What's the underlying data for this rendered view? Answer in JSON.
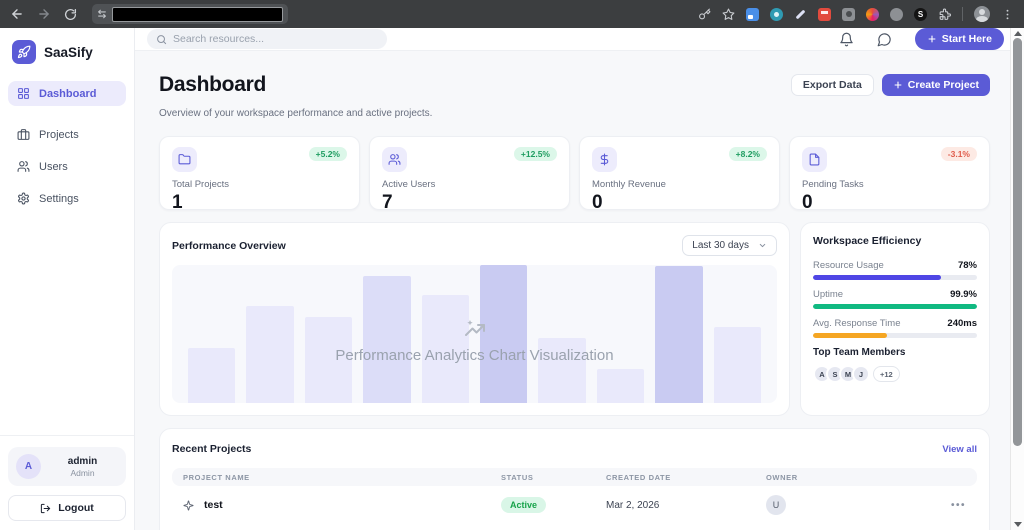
{
  "colors": {
    "accent": "#5b5bd6",
    "accent_soft": "#ecebfc",
    "positive_text": "#1f9d61",
    "positive_bg": "#dcf7e9",
    "negative_text": "#e05b4a",
    "negative_bg": "#fdeae4",
    "progress_indigo": "#4f46e5",
    "progress_green": "#10b981",
    "progress_orange": "#f5a623"
  },
  "sidebar": {
    "brand": "SaaSify",
    "items": [
      {
        "label": "Dashboard",
        "active": true
      },
      {
        "label": "Projects",
        "active": false
      },
      {
        "label": "Users",
        "active": false
      },
      {
        "label": "Settings",
        "active": false
      }
    ],
    "user": {
      "name": "admin",
      "role": "Admin",
      "initial": "A"
    },
    "logout_label": "Logout"
  },
  "topbar": {
    "search_placeholder": "Search resources...",
    "start_button": "Start Here"
  },
  "page": {
    "title": "Dashboard",
    "subtitle": "Overview of your workspace performance and active projects.",
    "export_button": "Export Data",
    "create_button": "Create Project"
  },
  "stats": [
    {
      "label": "Total Projects",
      "value": "1",
      "change": "+5.2%",
      "trend": "up",
      "icon": "folder-icon"
    },
    {
      "label": "Active Users",
      "value": "7",
      "change": "+12.5%",
      "trend": "up",
      "icon": "users-icon"
    },
    {
      "label": "Monthly Revenue",
      "value": "0",
      "change": "+8.2%",
      "trend": "up",
      "icon": "dollar-icon"
    },
    {
      "label": "Pending Tasks",
      "value": "0",
      "change": "-3.1%",
      "trend": "down",
      "icon": "file-icon"
    }
  ],
  "performance": {
    "title": "Performance Overview",
    "range_selected": "Last 30 days",
    "placeholder_text": "Performance Analytics Chart Visualization",
    "chart_data": {
      "type": "bar",
      "title": "Performance Overview",
      "values": [
        40,
        70,
        62,
        92,
        78,
        100,
        47,
        25,
        99,
        55
      ],
      "bar_tones": [
        "light",
        "light",
        "light",
        "medium",
        "light",
        "dark",
        "light",
        "light",
        "dark",
        "light"
      ],
      "ylim": [
        0,
        100
      ],
      "unit": "percent of plot height (decorative placeholder, no axes or labels shown)",
      "grid": false,
      "legend": false
    }
  },
  "efficiency": {
    "title": "Workspace Efficiency",
    "metrics": [
      {
        "label": "Resource Usage",
        "value": "78%",
        "pct": 78,
        "color": "#4f46e5"
      },
      {
        "label": "Uptime",
        "value": "99.9%",
        "pct": 100,
        "color": "#10b981"
      },
      {
        "label": "Avg. Response Time",
        "value": "240ms",
        "pct": 45,
        "color": "#f5a623"
      }
    ],
    "team": {
      "title": "Top Team Members",
      "members": [
        "A",
        "S",
        "M",
        "J"
      ],
      "more": "+12"
    }
  },
  "recent": {
    "title": "Recent Projects",
    "view_all": "View all",
    "columns": [
      "PROJECT NAME",
      "STATUS",
      "CREATED DATE",
      "OWNER"
    ],
    "rows": [
      {
        "name": "test",
        "status": "Active",
        "created": "Mar 2, 2026",
        "owner_initial": "U"
      }
    ]
  }
}
